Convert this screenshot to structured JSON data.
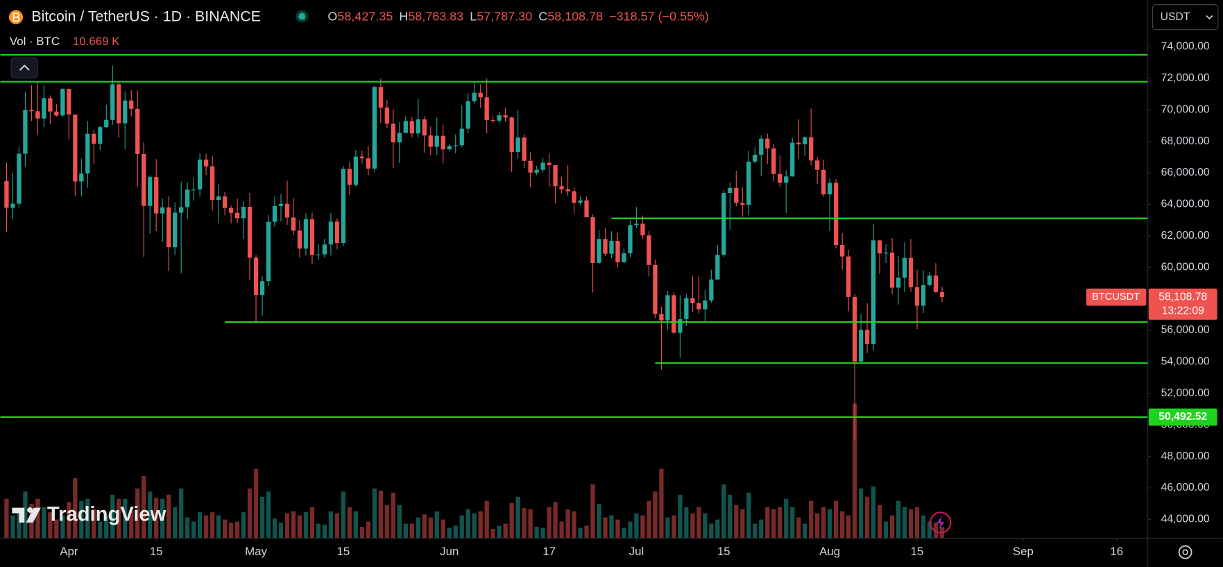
{
  "chart_data": {
    "type": "candlestick",
    "title": "Bitcoin / TetherUS · 1D · BINANCE",
    "header": [
      {
        "key": "O",
        "text": "58,427.35"
      },
      {
        "key": "H",
        "text": "58,763.83"
      },
      {
        "key": "L",
        "text": "57,787.30"
      },
      {
        "key": "C",
        "text": "58,108.78"
      }
    ],
    "change": "−318.57 (−0.55%)",
    "volume_title": "Vol · BTC",
    "volume_label": "10.669 K",
    "currency": "USDT",
    "symbol": "BTCUSDT",
    "last_price_label": "58,108.78",
    "countdown": "13:22:09",
    "watermark": "TradingView",
    "up_color": "#26a69a",
    "down_color": "#ef5350",
    "level_color": "#1ed21e",
    "grid": false,
    "x": [
      "03-22",
      "03-23",
      "03-24",
      "03-25",
      "03-26",
      "03-27",
      "03-28",
      "03-29",
      "03-30",
      "03-31",
      "04-01",
      "04-02",
      "04-03",
      "04-04",
      "04-05",
      "04-06",
      "04-07",
      "04-08",
      "04-09",
      "04-10",
      "04-11",
      "04-12",
      "04-13",
      "04-14",
      "04-15",
      "04-16",
      "04-17",
      "04-18",
      "04-19",
      "04-20",
      "04-21",
      "04-22",
      "04-23",
      "04-24",
      "04-25",
      "04-26",
      "04-27",
      "04-28",
      "04-29",
      "04-30",
      "05-01",
      "05-02",
      "05-03",
      "05-04",
      "05-05",
      "05-06",
      "05-07",
      "05-08",
      "05-09",
      "05-10",
      "05-11",
      "05-12",
      "05-13",
      "05-14",
      "05-15",
      "05-16",
      "05-17",
      "05-18",
      "05-19",
      "05-20",
      "05-21",
      "05-22",
      "05-23",
      "05-24",
      "05-25",
      "05-26",
      "05-27",
      "05-28",
      "05-29",
      "05-30",
      "05-31",
      "06-01",
      "06-02",
      "06-03",
      "06-04",
      "06-05",
      "06-06",
      "06-07",
      "06-08",
      "06-09",
      "06-10",
      "06-11",
      "06-12",
      "06-13",
      "06-14",
      "06-15",
      "06-16",
      "06-17",
      "06-18",
      "06-19",
      "06-20",
      "06-21",
      "06-22",
      "06-23",
      "06-24",
      "06-25",
      "06-26",
      "06-27",
      "06-28",
      "06-29",
      "06-30",
      "07-01",
      "07-02",
      "07-03",
      "07-04",
      "07-05",
      "07-06",
      "07-07",
      "07-08",
      "07-09",
      "07-10",
      "07-11",
      "07-12",
      "07-13",
      "07-14",
      "07-15",
      "07-16",
      "07-17",
      "07-18",
      "07-19",
      "07-20",
      "07-21",
      "07-22",
      "07-23",
      "07-24",
      "07-25",
      "07-26",
      "07-27",
      "07-28",
      "07-29",
      "07-30",
      "07-31",
      "08-01",
      "08-02",
      "08-03",
      "08-04",
      "08-05",
      "08-06",
      "08-07",
      "08-08",
      "08-09",
      "08-10",
      "08-11",
      "08-12",
      "08-13",
      "08-14",
      "08-15",
      "08-16",
      "08-17",
      "08-18",
      "08-19"
    ],
    "open": [
      65480,
      63780,
      64040,
      67210,
      69990,
      69910,
      69450,
      70740,
      69890,
      69640,
      71330,
      69700,
      65450,
      65960,
      68480,
      67840,
      68900,
      69360,
      71620,
      69140,
      70590,
      70060,
      67190,
      63900,
      65730,
      63420,
      63810,
      61280,
      63470,
      63820,
      64940,
      64940,
      66840,
      66410,
      64280,
      64500,
      63770,
      63460,
      63120,
      63840,
      60610,
      58250,
      59120,
      62890,
      63890,
      64030,
      63160,
      62330,
      61190,
      63050,
      60790,
      60820,
      61450,
      62900,
      61550,
      66250,
      65230,
      67030,
      66920,
      66270,
      71450,
      70140,
      69120,
      67930,
      68530,
      69290,
      68500,
      69390,
      68370,
      67650,
      68350,
      67490,
      67710,
      67750,
      68800,
      70540,
      71080,
      70790,
      69350,
      69310,
      69650,
      69510,
      67320,
      68240,
      66760,
      66010,
      66190,
      66640,
      66490,
      65150,
      64960,
      64830,
      64100,
      64250,
      63180,
      60280,
      61800,
      60860,
      61680,
      60320,
      60890,
      62680,
      62770,
      62030,
      60150,
      57040,
      56640,
      58230,
      55850,
      56710,
      58050,
      57720,
      57340,
      57900,
      59230,
      60790,
      64720,
      65040,
      64090,
      63970,
      66710,
      67150,
      68170,
      67550,
      65930,
      65370,
      65770,
      67910,
      67810,
      68250,
      66780,
      66190,
      64630,
      65360,
      61420,
      60690,
      58120,
      54020,
      56030,
      55130,
      61710,
      60880,
      60940,
      58710,
      59350,
      60600,
      58740,
      57560,
      58870,
      59480,
      58427.35
    ],
    "high": [
      66650,
      65970,
      67620,
      71150,
      71550,
      71770,
      71540,
      70910,
      70350,
      71370,
      71340,
      69700,
      66900,
      69290,
      68720,
      69000,
      70330,
      72800,
      71760,
      71170,
      71260,
      71230,
      67930,
      65840,
      66870,
      64360,
      64490,
      64120,
      65450,
      65400,
      65700,
      67230,
      67200,
      67080,
      65300,
      64800,
      63920,
      64370,
      64230,
      64730,
      60780,
      59450,
      63330,
      64500,
      64660,
      65500,
      64400,
      62990,
      63420,
      63470,
      61490,
      61820,
      63450,
      63100,
      66440,
      66690,
      67450,
      67400,
      67700,
      71520,
      71980,
      70620,
      70040,
      69240,
      69580,
      69540,
      70690,
      69590,
      68940,
      69500,
      69050,
      67860,
      68440,
      70290,
      71060,
      71760,
      71630,
      71980,
      69580,
      69860,
      70150,
      69560,
      69990,
      68450,
      67300,
      66450,
      66950,
      67200,
      66490,
      65730,
      66480,
      65070,
      64520,
      64490,
      63370,
      62350,
      62480,
      62290,
      62170,
      61200,
      63000,
      63830,
      63290,
      62290,
      60500,
      57510,
      58480,
      58430,
      58230,
      58300,
      59470,
      59450,
      58550,
      59850,
      61410,
      64900,
      65390,
      66130,
      65100,
      67400,
      67620,
      68370,
      68480,
      67820,
      67100,
      66150,
      68210,
      69400,
      68320,
      70080,
      66990,
      66830,
      65660,
      65600,
      62170,
      61120,
      58300,
      57040,
      57720,
      62750,
      61750,
      61460,
      61860,
      60730,
      61580,
      61800,
      59850,
      59820,
      59700,
      60270,
      58763.83
    ],
    "low": [
      62260,
      63060,
      63800,
      66390,
      69280,
      68400,
      68900,
      69080,
      69560,
      69570,
      68100,
      64500,
      64500,
      65060,
      66560,
      67440,
      68850,
      69040,
      68210,
      67520,
      69570,
      65090,
      60660,
      62130,
      62300,
      61620,
      59770,
      60780,
      59600,
      63100,
      64240,
      64500,
      65860,
      63600,
      62800,
      63300,
      62790,
      62810,
      61800,
      59190,
      56550,
      56940,
      58810,
      62580,
      62900,
      62700,
      62030,
      60630,
      60750,
      60190,
      60490,
      60630,
      60750,
      61140,
      61330,
      64610,
      65120,
      66600,
      65860,
      66060,
      69160,
      68850,
      66300,
      66620,
      68500,
      68240,
      68250,
      67280,
      67130,
      67120,
      66600,
      67390,
      67250,
      67610,
      68510,
      70380,
      70120,
      68500,
      69150,
      69130,
      69230,
      66050,
      66900,
      66300,
      65080,
      65850,
      66030,
      65100,
      64060,
      64690,
      64530,
      63380,
      63940,
      63180,
      58400,
      60230,
      60710,
      60570,
      60000,
      60290,
      60620,
      62510,
      61800,
      59420,
      56770,
      53500,
      56020,
      55770,
      54260,
      56290,
      57170,
      57060,
      56590,
      57750,
      59220,
      60640,
      62380,
      63870,
      63220,
      63300,
      66600,
      65780,
      66570,
      65440,
      65100,
      63450,
      65750,
      66900,
      67060,
      66480,
      65300,
      64480,
      62300,
      61200,
      59850,
      57210,
      49000,
      53970,
      54560,
      54750,
      59590,
      60270,
      58290,
      57640,
      58410,
      58430,
      56080,
      57100,
      58790,
      58380,
      57787.3
    ],
    "close": [
      63780,
      64040,
      67210,
      69990,
      69910,
      69450,
      70740,
      69890,
      69640,
      71330,
      69700,
      65450,
      65960,
      68480,
      67840,
      68900,
      69360,
      71620,
      69140,
      70590,
      70060,
      67190,
      63900,
      65730,
      63420,
      63810,
      61280,
      63470,
      63820,
      64940,
      64940,
      66840,
      66410,
      64280,
      64500,
      63770,
      63460,
      63120,
      63840,
      60610,
      58250,
      59120,
      62890,
      63890,
      64030,
      63160,
      62330,
      61190,
      63050,
      60790,
      60820,
      61450,
      62900,
      61550,
      66250,
      65230,
      67030,
      66920,
      66270,
      71450,
      70140,
      69120,
      67930,
      68530,
      69290,
      68500,
      69390,
      68370,
      67650,
      68350,
      67490,
      67710,
      67750,
      68800,
      70540,
      71080,
      70790,
      69350,
      69310,
      69650,
      69510,
      67320,
      68240,
      66760,
      66010,
      66190,
      66640,
      66490,
      65150,
      64960,
      64830,
      64100,
      64250,
      63180,
      60280,
      61800,
      60860,
      61680,
      60320,
      60890,
      62680,
      62770,
      62030,
      60150,
      57040,
      56640,
      58230,
      55850,
      56710,
      58050,
      57720,
      57340,
      57900,
      59230,
      60790,
      64720,
      65040,
      64090,
      63970,
      66710,
      67150,
      68170,
      67550,
      65930,
      65370,
      65770,
      67910,
      67810,
      68250,
      66780,
      66190,
      64630,
      65360,
      61420,
      60690,
      58120,
      54020,
      56030,
      55130,
      61710,
      60880,
      60940,
      58710,
      59350,
      60600,
      58740,
      57560,
      58870,
      59480,
      58430,
      58108.78
    ],
    "volume": [
      38,
      22,
      28,
      45,
      33,
      38,
      30,
      25,
      18,
      22,
      35,
      58,
      36,
      38,
      28,
      16,
      22,
      42,
      38,
      38,
      26,
      48,
      60,
      45,
      39,
      38,
      42,
      30,
      48,
      20,
      16,
      25,
      22,
      25,
      22,
      18,
      15,
      16,
      25,
      48,
      67,
      40,
      45,
      19,
      15,
      24,
      26,
      22,
      25,
      30,
      14,
      13,
      26,
      24,
      45,
      30,
      26,
      11,
      16,
      48,
      46,
      32,
      44,
      32,
      14,
      14,
      20,
      23,
      20,
      26,
      18,
      10,
      12,
      22,
      28,
      24,
      26,
      36,
      9,
      12,
      14,
      34,
      40,
      29,
      28,
      11,
      10,
      30,
      35,
      16,
      28,
      26,
      10,
      12,
      52,
      33,
      20,
      22,
      18,
      10,
      16,
      24,
      22,
      36,
      45,
      67,
      20,
      22,
      42,
      30,
      24,
      30,
      24,
      14,
      18,
      52,
      42,
      32,
      28,
      44,
      14,
      18,
      30,
      28,
      30,
      38,
      30,
      20,
      14,
      36,
      24,
      30,
      28,
      36,
      26,
      22,
      130,
      48,
      40,
      50,
      32,
      16,
      22,
      36,
      30,
      28,
      30,
      22,
      16,
      15,
      10.669
    ],
    "levels": [
      {
        "value": 73490
      },
      {
        "value": 71780
      },
      {
        "value": 63110,
        "from": "06-27"
      },
      {
        "value": 56530,
        "from": "04-26"
      },
      {
        "value": 53920,
        "from": "07-04"
      },
      {
        "value": 50492.52,
        "label": "50,492.52"
      }
    ],
    "xlim": [
      "03-21",
      "09-21"
    ],
    "xticks": [
      {
        "value": "04-01",
        "label": "Apr"
      },
      {
        "value": "04-15",
        "label": "15"
      },
      {
        "value": "05-01",
        "label": "May"
      },
      {
        "value": "05-15",
        "label": "15"
      },
      {
        "value": "06-01",
        "label": "Jun"
      },
      {
        "value": "06-17",
        "label": "17"
      },
      {
        "value": "07-01",
        "label": "Jul"
      },
      {
        "value": "07-15",
        "label": "15"
      },
      {
        "value": "08-01",
        "label": "Aug"
      },
      {
        "value": "08-15",
        "label": "15"
      },
      {
        "value": "09-01",
        "label": "Sep"
      },
      {
        "value": "09-16",
        "label": "16"
      }
    ],
    "ylim": [
      42810,
      76970
    ],
    "yticks": [
      {
        "value": 44000,
        "label": "44,000.00"
      },
      {
        "value": 46000,
        "label": "46,000.00"
      },
      {
        "value": 48000,
        "label": "48,000.00"
      },
      {
        "value": 50000,
        "label": "50,000.00"
      },
      {
        "value": 52000,
        "label": "52,000.00"
      },
      {
        "value": 54000,
        "label": "54,000.00"
      },
      {
        "value": 56000,
        "label": "56,000.00"
      },
      {
        "value": 58000,
        "label": "58,000.00"
      },
      {
        "value": 60000,
        "label": "60,000.00"
      },
      {
        "value": 62000,
        "label": "62,000.00"
      },
      {
        "value": 64000,
        "label": "64,000.00"
      },
      {
        "value": 66000,
        "label": "66,000.00"
      },
      {
        "value": 68000,
        "label": "68,000.00"
      },
      {
        "value": 70000,
        "label": "70,000.00"
      },
      {
        "value": 72000,
        "label": "72,000.00"
      },
      {
        "value": 74000,
        "label": "74,000.00"
      }
    ]
  }
}
